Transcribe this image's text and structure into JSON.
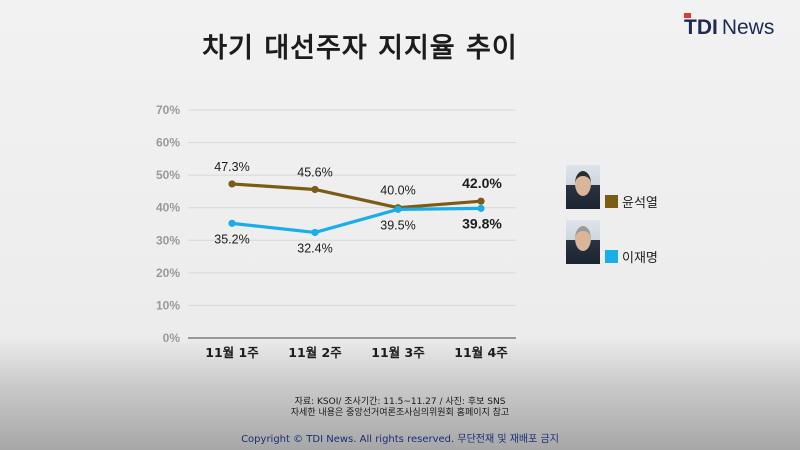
{
  "title": "차기 대선주자 지지율 추이",
  "logo": {
    "t": "T",
    "di": "DI",
    "news": "News"
  },
  "chart_data": {
    "type": "line",
    "categories": [
      "11월 1주",
      "11월 2주",
      "11월 3주",
      "11월 4주"
    ],
    "ylim": [
      0,
      70
    ],
    "yticks": [
      0,
      10,
      20,
      30,
      40,
      50,
      60,
      70
    ],
    "ytick_labels": [
      "0%",
      "10%",
      "20%",
      "30%",
      "40%",
      "50%",
      "60%",
      "70%"
    ],
    "grid": true,
    "legend_position": "right",
    "series": [
      {
        "name": "윤석열",
        "color": "#7a5c14",
        "values": [
          47.3,
          45.6,
          40.0,
          42.0
        ],
        "labels": [
          "47.3%",
          "45.6%",
          "40.0%",
          "42.0%"
        ],
        "label_pos": "above",
        "last_bold": true
      },
      {
        "name": "이재명",
        "color": "#1aaee8",
        "values": [
          35.2,
          32.4,
          39.5,
          39.8
        ],
        "labels": [
          "35.2%",
          "32.4%",
          "39.5%",
          "39.8%"
        ],
        "label_pos": "below",
        "last_bold": true
      }
    ]
  },
  "footer": {
    "source": "자료: KSOI/ 조사기간: 11.5~11.27 / 사진: 후보 SNS",
    "detail": "자세한 내용은 중앙선거여론조사심의위원회 홈페이지 참고",
    "copyright": "Copyright © TDI News. All rights reserved. 무단전재 및 재배포 금지"
  }
}
